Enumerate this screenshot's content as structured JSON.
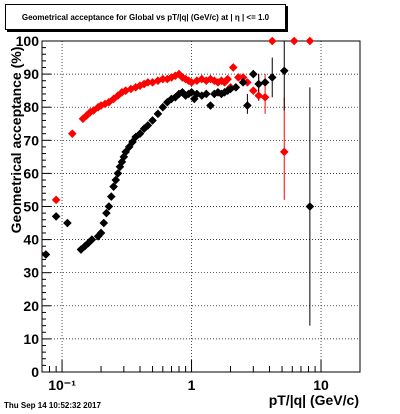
{
  "chart_data": {
    "type": "scatter",
    "title": "Geometrical acceptance for Global vs pT/|q| (GeV/c) at |  η  | <= 1.0",
    "xlabel": "pT/|q| (GeV/c)",
    "ylabel": "Geometrical acceptance (%)",
    "xscale": "log",
    "xlim": [
      0.07,
      20
    ],
    "ylim": [
      0,
      100
    ],
    "grid": true,
    "x_tick_labels": [
      "10⁻¹",
      "1",
      "10"
    ],
    "y_ticks": [
      0,
      10,
      20,
      30,
      40,
      50,
      60,
      70,
      80,
      90,
      100
    ],
    "series": [
      {
        "color": "#ff0000",
        "points": [
          [
            0.075,
            35.5
          ],
          [
            0.09,
            52
          ],
          [
            0.12,
            72
          ],
          [
            0.145,
            76.5
          ],
          [
            0.155,
            77.5
          ],
          [
            0.165,
            78.5
          ],
          [
            0.175,
            79
          ],
          [
            0.19,
            80
          ],
          [
            0.2,
            80.5
          ],
          [
            0.215,
            81
          ],
          [
            0.23,
            81.5
          ],
          [
            0.25,
            82.5
          ],
          [
            0.27,
            83.5
          ],
          [
            0.29,
            84.5
          ],
          [
            0.31,
            85
          ],
          [
            0.34,
            85.5
          ],
          [
            0.37,
            86
          ],
          [
            0.4,
            86.5
          ],
          [
            0.43,
            87
          ],
          [
            0.46,
            87.5
          ],
          [
            0.5,
            87.5
          ],
          [
            0.55,
            88
          ],
          [
            0.6,
            88.5
          ],
          [
            0.65,
            88.5
          ],
          [
            0.7,
            89
          ],
          [
            0.75,
            89.5
          ],
          [
            0.8,
            90
          ],
          [
            0.85,
            89
          ],
          [
            0.9,
            88.5
          ],
          [
            0.95,
            88
          ],
          [
            1.0,
            87.5
          ],
          [
            1.1,
            88
          ],
          [
            1.2,
            88.5
          ],
          [
            1.3,
            88
          ],
          [
            1.4,
            88.5
          ],
          [
            1.5,
            88
          ],
          [
            1.6,
            87.5
          ],
          [
            1.7,
            88
          ],
          [
            1.8,
            87.5
          ],
          [
            1.9,
            88.5
          ],
          [
            2.0,
            86
          ],
          [
            2.1,
            92
          ],
          [
            2.3,
            89
          ],
          [
            2.5,
            89
          ],
          [
            2.7,
            87.5
          ],
          [
            3.0,
            85
          ],
          [
            3.3,
            83.5
          ],
          [
            3.7,
            83
          ],
          [
            4.2,
            100
          ],
          [
            5.2,
            66.5
          ],
          [
            6.2,
            100
          ],
          [
            8.2,
            100
          ]
        ]
      },
      {
        "color": "#000000",
        "points": [
          [
            0.075,
            35.5
          ],
          [
            0.09,
            47
          ],
          [
            0.11,
            45
          ],
          [
            0.14,
            37
          ],
          [
            0.15,
            38
          ],
          [
            0.16,
            39
          ],
          [
            0.17,
            40
          ],
          [
            0.19,
            41
          ],
          [
            0.2,
            42
          ],
          [
            0.21,
            45
          ],
          [
            0.22,
            48
          ],
          [
            0.23,
            50
          ],
          [
            0.24,
            53
          ],
          [
            0.25,
            56
          ],
          [
            0.26,
            58
          ],
          [
            0.27,
            60
          ],
          [
            0.28,
            62
          ],
          [
            0.29,
            63.5
          ],
          [
            0.3,
            65
          ],
          [
            0.31,
            66.5
          ],
          [
            0.33,
            68
          ],
          [
            0.35,
            69.5
          ],
          [
            0.37,
            71
          ],
          [
            0.4,
            72
          ],
          [
            0.43,
            73.5
          ],
          [
            0.46,
            74.5
          ],
          [
            0.5,
            76
          ],
          [
            0.55,
            78
          ],
          [
            0.6,
            80
          ],
          [
            0.65,
            81.5
          ],
          [
            0.7,
            82.5
          ],
          [
            0.75,
            83
          ],
          [
            0.8,
            84
          ],
          [
            0.85,
            84.5
          ],
          [
            0.9,
            83.5
          ],
          [
            0.95,
            84
          ],
          [
            1.0,
            84.5
          ],
          [
            1.05,
            82.5
          ],
          [
            1.1,
            84
          ],
          [
            1.2,
            83.5
          ],
          [
            1.3,
            84
          ],
          [
            1.4,
            80.5
          ],
          [
            1.5,
            84
          ],
          [
            1.6,
            84.5
          ],
          [
            1.7,
            84
          ],
          [
            1.8,
            84.5
          ],
          [
            1.9,
            85
          ],
          [
            2.0,
            85.5
          ],
          [
            2.2,
            86
          ],
          [
            2.5,
            87.5
          ],
          [
            2.7,
            80.5
          ],
          [
            3.0,
            90
          ],
          [
            3.3,
            87
          ],
          [
            3.7,
            87.5
          ],
          [
            4.2,
            89
          ],
          [
            5.2,
            91
          ],
          [
            8.2,
            50
          ]
        ]
      }
    ],
    "error_bars": [
      {
        "series": 0,
        "x": 3.3,
        "low": 82,
        "high": 90
      },
      {
        "series": 0,
        "x": 3.7,
        "low": 78,
        "high": 90
      },
      {
        "series": 0,
        "x": 5.2,
        "low": 52,
        "high": 83
      },
      {
        "series": 1,
        "x": 2.7,
        "low": 78,
        "high": 84
      },
      {
        "series": 1,
        "x": 3.3,
        "low": 82,
        "high": 90
      },
      {
        "series": 1,
        "x": 4.2,
        "low": 83,
        "high": 95
      },
      {
        "series": 1,
        "x": 5.2,
        "low": 79,
        "high": 100
      },
      {
        "series": 1,
        "x": 8.2,
        "low": 14,
        "high": 86
      }
    ]
  },
  "footer": {
    "timestamp": "Thu Sep 14 10:52:32 2017"
  }
}
